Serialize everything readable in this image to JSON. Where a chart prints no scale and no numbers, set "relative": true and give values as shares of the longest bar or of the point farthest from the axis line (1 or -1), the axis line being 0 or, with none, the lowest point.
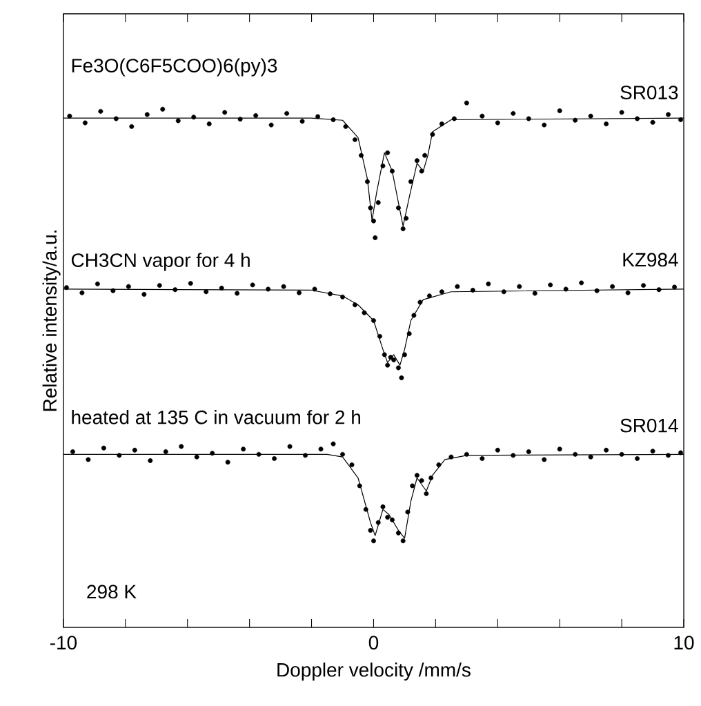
{
  "chart_data": {
    "type": "scatter",
    "relative": true,
    "xlabel": "Doppler velocity /mm/s",
    "ylabel": "Relative intensity/a.u.",
    "xlim": [
      -10,
      10
    ],
    "xticks": [
      -10,
      {
        "value": -8,
        "label": null
      },
      {
        "value": -6,
        "label": null
      },
      {
        "value": -4,
        "label": null
      },
      {
        "value": -2,
        "label": null
      },
      0,
      {
        "value": 2,
        "label": null
      },
      {
        "value": 4,
        "label": null
      },
      {
        "value": 6,
        "label": null
      },
      {
        "value": 8,
        "label": null
      },
      10
    ],
    "annotations": [
      "Fe3O(C6F5COO)6(py)3",
      "CH3CN vapor for 4 h",
      "heated at 135 C in vacuum for 2 h",
      "298 K"
    ],
    "series": [
      {
        "name": "SR013",
        "marker": "circle",
        "color": "#000000",
        "x": [
          -9.8,
          -9.3,
          -8.8,
          -8.3,
          -7.8,
          -7.3,
          -6.8,
          -6.3,
          -5.8,
          -5.3,
          -4.8,
          -4.3,
          -3.8,
          -3.3,
          -2.8,
          -2.3,
          -1.8,
          -1.3,
          -0.9,
          -0.6,
          -0.4,
          -0.2,
          -0.1,
          0,
          0.05,
          0.15,
          0.3,
          0.45,
          0.6,
          0.8,
          0.95,
          1.05,
          1.2,
          1.4,
          1.55,
          1.65,
          1.9,
          2.2,
          2.6,
          3.0,
          3.5,
          4,
          4.5,
          5,
          5.5,
          6,
          6.5,
          7,
          7.5,
          8,
          8.5,
          9,
          9.5,
          9.9
        ],
        "values": [
          0.975,
          0.962,
          0.984,
          0.97,
          0.955,
          0.978,
          0.988,
          0.966,
          0.973,
          0.96,
          0.982,
          0.969,
          0.976,
          0.958,
          0.98,
          0.965,
          0.974,
          0.968,
          0.955,
          0.93,
          0.9,
          0.85,
          0.8,
          0.775,
          0.743,
          0.81,
          0.88,
          0.905,
          0.87,
          0.8,
          0.76,
          0.78,
          0.85,
          0.89,
          0.87,
          0.9,
          0.94,
          0.96,
          0.97,
          1.0,
          0.975,
          0.962,
          0.98,
          0.97,
          0.958,
          0.985,
          0.967,
          0.975,
          0.96,
          0.982,
          0.97,
          0.963,
          0.978,
          0.968
        ]
      },
      {
        "type": "line",
        "marker": "none",
        "color": "#000000",
        "x": [
          -10,
          -2,
          -1,
          -0.5,
          -0.2,
          -0.05,
          0.1,
          0.35,
          0.6,
          0.95,
          1.15,
          1.4,
          1.6,
          1.75,
          1.9,
          2.5,
          10
        ],
        "values": [
          0.971,
          0.971,
          0.967,
          0.934,
          0.855,
          0.776,
          0.83,
          0.905,
          0.87,
          0.765,
          0.82,
          0.885,
          0.87,
          0.9,
          0.945,
          0.968,
          0.971
        ]
      },
      {
        "name": "KZ984",
        "marker": "circle",
        "color": "#000000",
        "x": [
          -9.9,
          -9.4,
          -8.9,
          -8.4,
          -7.9,
          -7.4,
          -6.9,
          -6.4,
          -5.9,
          -5.4,
          -4.9,
          -4.4,
          -3.9,
          -3.4,
          -2.9,
          -2.4,
          -1.9,
          -1.4,
          -1.0,
          -0.6,
          -0.3,
          0,
          0.2,
          0.35,
          0.45,
          0.55,
          0.65,
          0.8,
          0.9,
          1.0,
          1.15,
          1.3,
          1.5,
          1.8,
          2.2,
          2.7,
          3.2,
          3.7,
          4.2,
          4.7,
          5.2,
          5.7,
          6.2,
          6.7,
          7.2,
          7.7,
          8.2,
          8.7,
          9.2,
          9.7
        ],
        "values": [
          0.648,
          0.638,
          0.655,
          0.642,
          0.65,
          0.635,
          0.652,
          0.644,
          0.656,
          0.64,
          0.647,
          0.637,
          0.653,
          0.645,
          0.65,
          0.638,
          0.645,
          0.636,
          0.63,
          0.615,
          0.6,
          0.585,
          0.555,
          0.52,
          0.5,
          0.515,
          0.51,
          0.495,
          0.476,
          0.52,
          0.56,
          0.595,
          0.62,
          0.632,
          0.64,
          0.65,
          0.643,
          0.655,
          0.64,
          0.65,
          0.637,
          0.653,
          0.645,
          0.657,
          0.642,
          0.65,
          0.638,
          0.652,
          0.644,
          0.649
        ]
      },
      {
        "type": "line",
        "marker": "none",
        "color": "#000000",
        "x": [
          -10,
          -2,
          -1,
          -0.5,
          0,
          0.3,
          0.45,
          0.65,
          0.85,
          1.0,
          1.2,
          1.6,
          2.5,
          10
        ],
        "values": [
          0.645,
          0.643,
          0.632,
          0.615,
          0.585,
          0.53,
          0.505,
          0.52,
          0.5,
          0.53,
          0.585,
          0.625,
          0.64,
          0.645
        ]
      },
      {
        "name": "SR014",
        "marker": "circle",
        "color": "#000000",
        "x": [
          -9.7,
          -9.2,
          -8.7,
          -8.2,
          -7.7,
          -7.2,
          -6.7,
          -6.2,
          -5.7,
          -5.2,
          -4.7,
          -4.2,
          -3.7,
          -3.2,
          -2.7,
          -2.2,
          -1.7,
          -1.3,
          -1.0,
          -0.7,
          -0.45,
          -0.25,
          -0.1,
          0,
          0.15,
          0.3,
          0.45,
          0.6,
          0.8,
          0.95,
          1.1,
          1.25,
          1.4,
          1.55,
          1.7,
          1.85,
          2.1,
          2.5,
          3.0,
          3.5,
          4,
          4.5,
          5,
          5.5,
          6,
          6.5,
          7,
          7.5,
          8,
          8.5,
          9,
          9.5,
          9.9
        ],
        "values": [
          0.335,
          0.32,
          0.342,
          0.328,
          0.338,
          0.318,
          0.335,
          0.345,
          0.325,
          0.332,
          0.315,
          0.34,
          0.33,
          0.322,
          0.345,
          0.328,
          0.34,
          0.35,
          0.33,
          0.31,
          0.27,
          0.225,
          0.185,
          0.165,
          0.2,
          0.23,
          0.21,
          0.205,
          0.18,
          0.165,
          0.22,
          0.27,
          0.29,
          0.28,
          0.255,
          0.285,
          0.31,
          0.325,
          0.33,
          0.322,
          0.338,
          0.328,
          0.335,
          0.32,
          0.34,
          0.33,
          0.325,
          0.338,
          0.33,
          0.322,
          0.336,
          0.328,
          0.333
        ]
      },
      {
        "type": "line",
        "marker": "none",
        "color": "#000000",
        "x": [
          -10,
          -1.5,
          -1,
          -0.5,
          -0.1,
          0.05,
          0.3,
          0.5,
          0.8,
          1.0,
          1.2,
          1.4,
          1.7,
          1.9,
          2.3,
          3,
          10
        ],
        "values": [
          0.33,
          0.33,
          0.325,
          0.285,
          0.2,
          0.175,
          0.225,
          0.215,
          0.185,
          0.17,
          0.24,
          0.285,
          0.26,
          0.29,
          0.32,
          0.328,
          0.33
        ]
      }
    ]
  }
}
